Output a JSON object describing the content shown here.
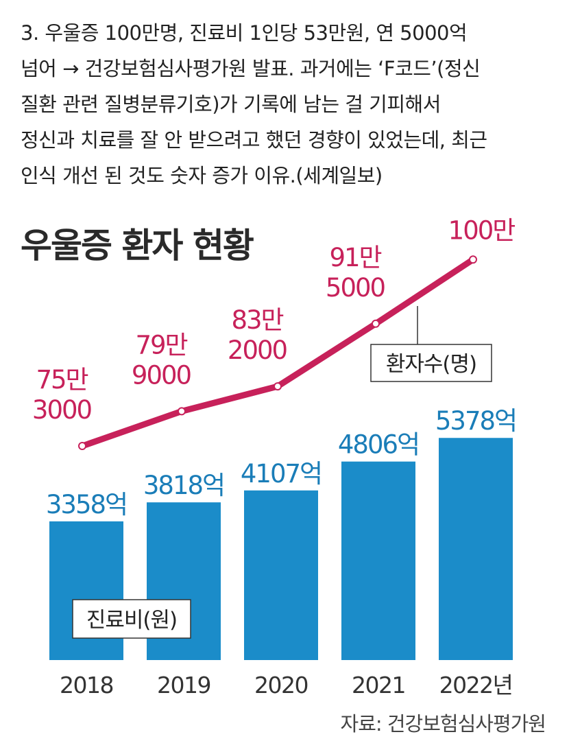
{
  "post": {
    "lines": [
      "3. 우울증 100만명, 진료비 1인당 53만원, 연 5000억",
      "넘어 → 건강보험심사평가원 발표. 과거에는 ‘F코드’(정신",
      "질환 관련 질병분류기호)가 기록에 남는 걸 기피해서",
      "정신과 치료를 잘 안 받으려고 했던 경향이 있었는데, 최근",
      "인식 개선 된 것도 숫자 증가 이유.(세계일보)"
    ]
  },
  "chart_data": {
    "type": "bar+line",
    "title": "우울증 환자 현황",
    "categories": [
      "2018",
      "2019",
      "2020",
      "2021",
      "2022년"
    ],
    "series": [
      {
        "name": "진료비(원)",
        "type": "bar",
        "unit": "억",
        "values": [
          3358,
          3818,
          4107,
          4806,
          5378
        ],
        "labels": [
          "3358억",
          "3818억",
          "4107억",
          "4806억",
          "5378억"
        ],
        "color": "#1b8cc9",
        "label_color": "#1a7db8"
      },
      {
        "name": "환자수(명)",
        "type": "line",
        "values": [
          753000,
          799000,
          832000,
          915000,
          1000000
        ],
        "labels": [
          [
            "75만",
            "3000"
          ],
          [
            "79만",
            "9000"
          ],
          [
            "83만",
            "2000"
          ],
          [
            "91만",
            "5000"
          ],
          [
            "100만"
          ]
        ],
        "color": "#c7215a"
      }
    ],
    "source": "자료: 건강보험심사평가원"
  }
}
